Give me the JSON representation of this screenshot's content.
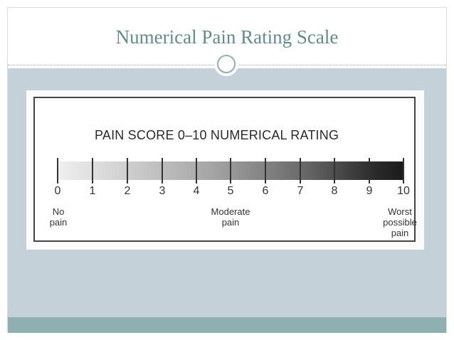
{
  "slide": {
    "title": "Numerical Pain Rating Scale"
  },
  "scale": {
    "heading": "PAIN SCORE 0–10 NUMERICAL RATING",
    "numbers": [
      "0",
      "1",
      "2",
      "3",
      "4",
      "5",
      "6",
      "7",
      "8",
      "9",
      "10"
    ],
    "anchors": {
      "left_line1": "No",
      "left_line2": "pain",
      "middle_line1": "Moderate",
      "middle_line2": "pain",
      "right_line1": "Worst",
      "right_line2": "possible",
      "right_line3": "pain"
    }
  },
  "colors": {
    "title": "#5f8d8f",
    "band": "#c5d1d8",
    "footer": "#8eb0b1"
  }
}
